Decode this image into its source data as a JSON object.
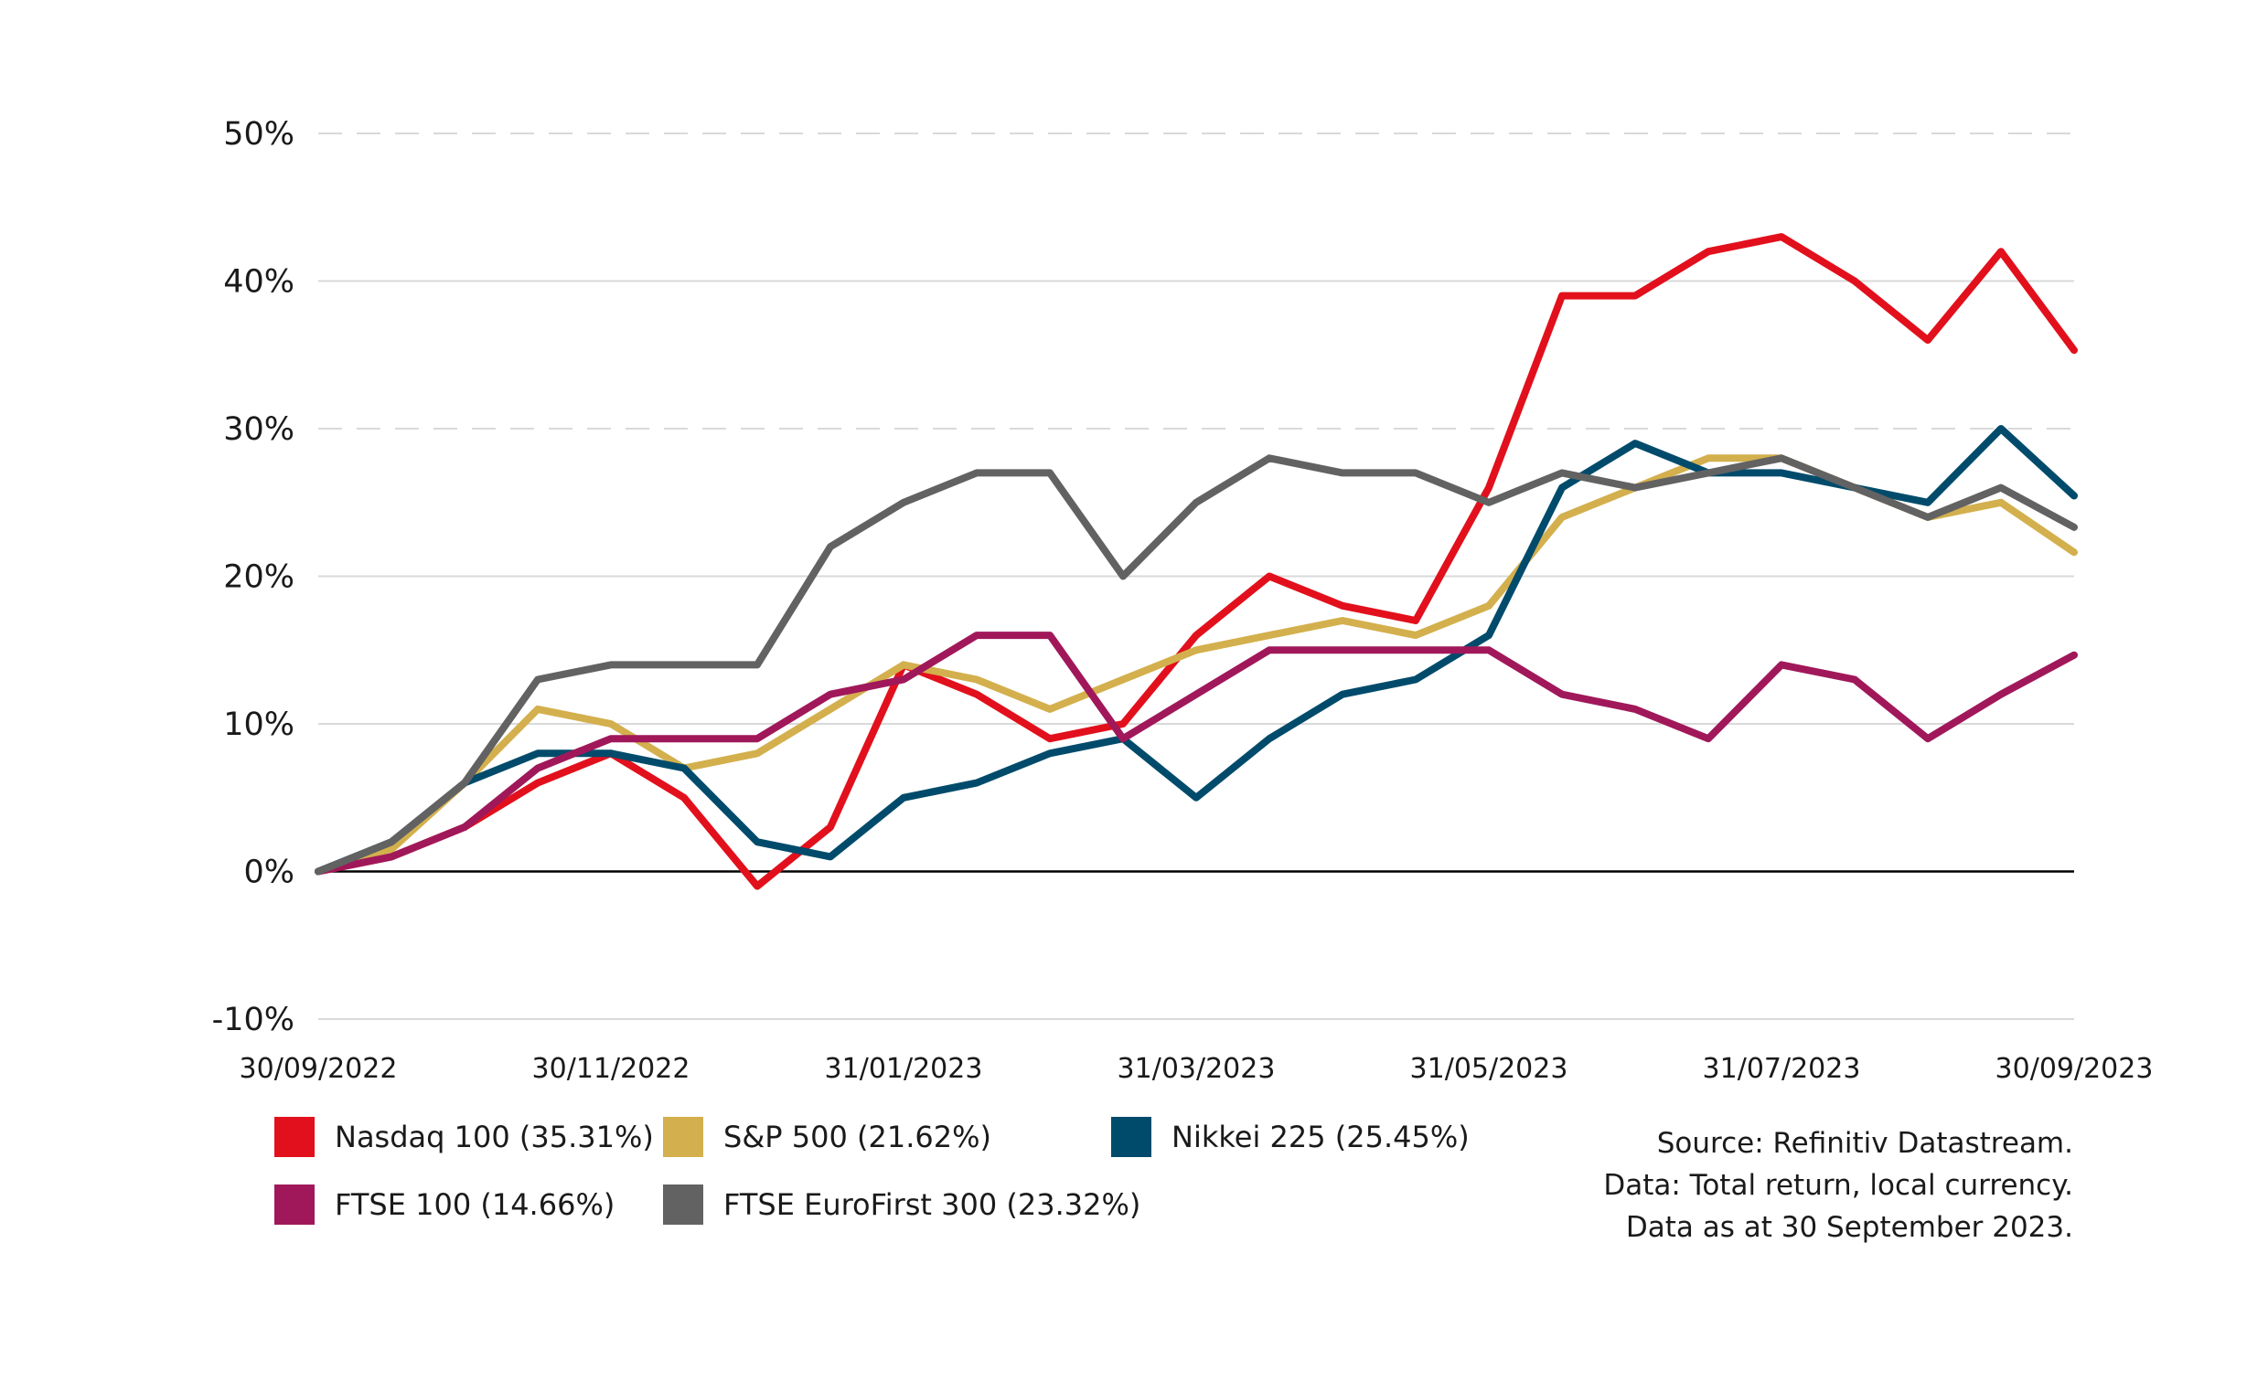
{
  "chart_data": {
    "type": "line",
    "y_unit": "%",
    "ylim": [
      -10,
      50
    ],
    "y_ticks": [
      "-10%",
      "0%",
      "10%",
      "20%",
      "30%",
      "40%",
      "50%"
    ],
    "y_tick_values": [
      -10,
      0,
      10,
      20,
      30,
      40,
      50
    ],
    "x_ticks": [
      "30/09/2022",
      "30/11/2022",
      "31/01/2023",
      "31/03/2023",
      "31/05/2023",
      "31/07/2023",
      "30/09/2023"
    ],
    "grid": "horizontal",
    "legend_placement": "bottom",
    "x": [
      "30/09/2022",
      "15/10/2022",
      "31/10/2022",
      "15/11/2022",
      "30/11/2022",
      "15/12/2022",
      "31/12/2022",
      "15/01/2023",
      "31/01/2023",
      "15/02/2023",
      "28/02/2023",
      "15/03/2023",
      "31/03/2023",
      "15/04/2023",
      "30/04/2023",
      "15/05/2023",
      "31/05/2023",
      "15/06/2023",
      "30/06/2023",
      "15/07/2023",
      "31/07/2023",
      "15/08/2023",
      "31/08/2023",
      "15/09/2023",
      "30/09/2023"
    ],
    "series": [
      {
        "name": "Nasdaq 100 (35.31%)",
        "color": "#e2101c",
        "values": [
          0,
          1,
          3,
          6,
          8,
          5,
          -1,
          3,
          14,
          12,
          9,
          10,
          16,
          20,
          18,
          17,
          26,
          39,
          39,
          42,
          43,
          40,
          36,
          42,
          35.31
        ]
      },
      {
        "name": "S&P 500 (21.62%)",
        "color": "#d3b04d",
        "values": [
          0,
          1.5,
          6,
          11,
          10,
          7,
          8,
          11,
          14,
          13,
          11,
          13,
          15,
          16,
          17,
          16,
          18,
          24,
          26,
          28,
          28,
          26,
          24,
          25,
          21.62
        ]
      },
      {
        "name": "Nikkei 225 (25.45%)",
        "color": "#004b6b",
        "values": [
          0,
          2,
          6,
          8,
          8,
          7,
          2,
          1,
          5,
          6,
          8,
          9,
          5,
          9,
          12,
          13,
          16,
          26,
          29,
          27,
          27,
          26,
          25,
          30,
          25.45
        ]
      },
      {
        "name": "FTSE 100 (14.66%)",
        "color": "#a0185a",
        "values": [
          0,
          1,
          3,
          7,
          9,
          9,
          9,
          12,
          13,
          16,
          16,
          9,
          12,
          15,
          15,
          15,
          15,
          12,
          11,
          9,
          14,
          13,
          9,
          12,
          14.66
        ]
      },
      {
        "name": "FTSE EuroFirst 300 (23.32%)",
        "color": "#626262",
        "values": [
          0,
          2,
          6,
          13,
          14,
          14,
          14,
          22,
          25,
          27,
          27,
          20,
          25,
          28,
          27,
          27,
          25,
          27,
          26,
          27,
          28,
          26,
          24,
          26,
          23.32
        ]
      }
    ]
  },
  "legend": {
    "items": [
      {
        "label": "Nasdaq 100 (35.31%)",
        "color": "#e2101c"
      },
      {
        "label": "S&P 500 (21.62%)",
        "color": "#d3b04d"
      },
      {
        "label": "Nikkei 225 (25.45%)",
        "color": "#004b6b"
      },
      {
        "label": "FTSE 100 (14.66%)",
        "color": "#a0185a"
      },
      {
        "label": "FTSE EuroFirst 300 (23.32%)",
        "color": "#626262"
      }
    ]
  },
  "source_note": {
    "line1": "Source: Refinitiv Datastream.",
    "line2": "Data: Total return, local currency.",
    "line3": "Data as at 30 September 2023."
  }
}
